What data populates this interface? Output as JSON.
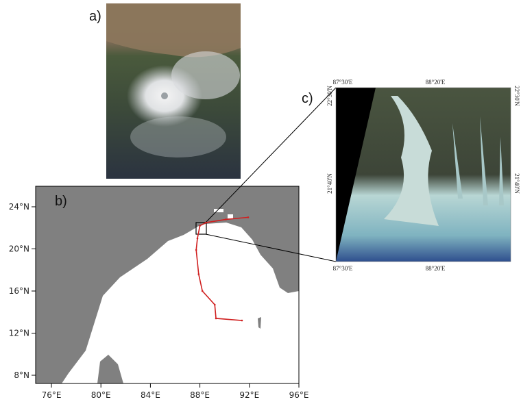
{
  "panels": {
    "a": {
      "label": "a)"
    },
    "b": {
      "label": "b)",
      "yticks": [
        {
          "value": 24,
          "label": "24°N"
        },
        {
          "value": 20,
          "label": "20°N"
        },
        {
          "value": 16,
          "label": "16°N"
        },
        {
          "value": 12,
          "label": "12°N"
        },
        {
          "value": 8,
          "label": "8°N"
        }
      ],
      "xticks": [
        {
          "value": 76,
          "label": "76°E"
        },
        {
          "value": 80,
          "label": "80°E"
        },
        {
          "value": 84,
          "label": "84°E"
        },
        {
          "value": 88,
          "label": "88°E"
        },
        {
          "value": 92,
          "label": "92°E"
        },
        {
          "value": 96,
          "label": "96°E"
        }
      ],
      "track": {
        "color": "#d02020",
        "lon": [
          91.4,
          89.3,
          89.2,
          88.2,
          87.9,
          87.7,
          87.8,
          88.0,
          88.5,
          90.1,
          91.9
        ],
        "lat": [
          13.2,
          13.4,
          14.7,
          16.0,
          17.6,
          19.9,
          21.0,
          22.2,
          22.5,
          22.8,
          23.0
        ]
      }
    },
    "c": {
      "label": "c)",
      "top_labels": [
        "87°30'E",
        "88°20'E"
      ],
      "bottom_labels": [
        "87°30'E",
        "88°20'E"
      ],
      "left_labels": [
        "22°30'N",
        "21°40'N"
      ],
      "right_labels": [
        "22°30'N",
        "21°40'N"
      ]
    }
  }
}
